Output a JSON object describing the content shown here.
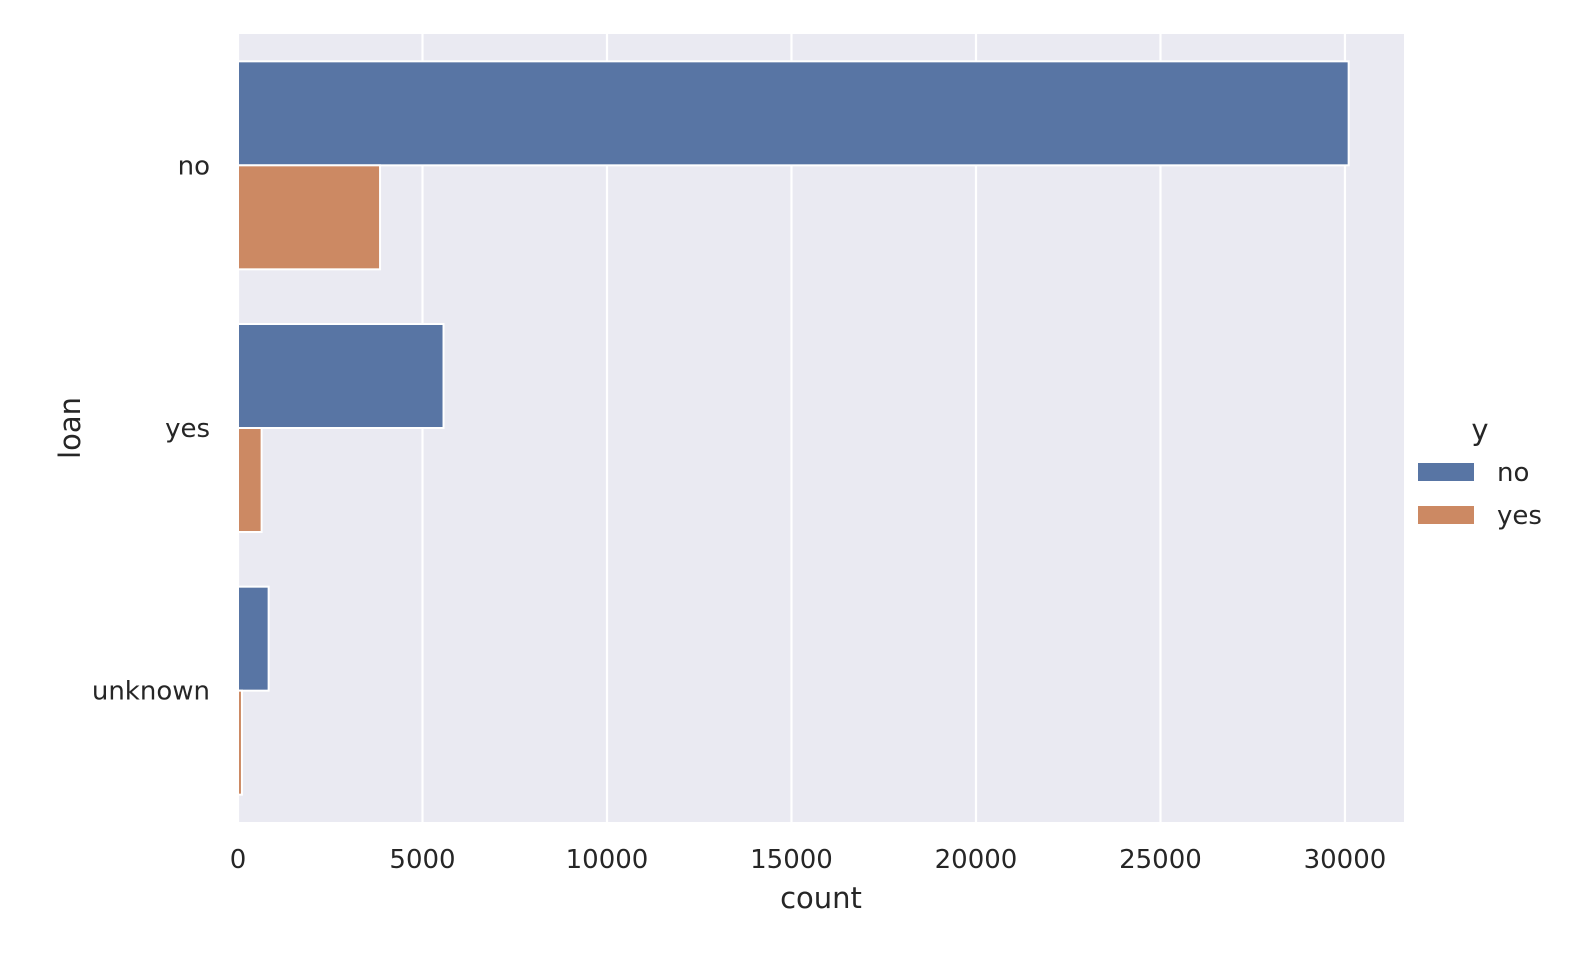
{
  "chart_data": {
    "type": "bar",
    "orientation": "horizontal",
    "categories": [
      "no",
      "yes",
      "unknown"
    ],
    "series": [
      {
        "name": "no",
        "values": [
          30100,
          5570,
          830
        ],
        "color": "#5875a4"
      },
      {
        "name": "yes",
        "values": [
          3850,
          640,
          107
        ],
        "color": "#cc8963"
      }
    ],
    "xlabel": "count",
    "ylabel": "loan",
    "xlim": [
      0,
      31600
    ],
    "xticks": [
      0,
      5000,
      10000,
      15000,
      20000,
      25000,
      30000
    ],
    "xtick_labels": [
      "0",
      "5000",
      "10000",
      "15000",
      "20000",
      "25000",
      "30000"
    ],
    "grid": true,
    "legend": {
      "title": "y",
      "placement": "outside-right"
    },
    "background_color": "#eaeaf2",
    "grid_color": "#ffffff"
  }
}
